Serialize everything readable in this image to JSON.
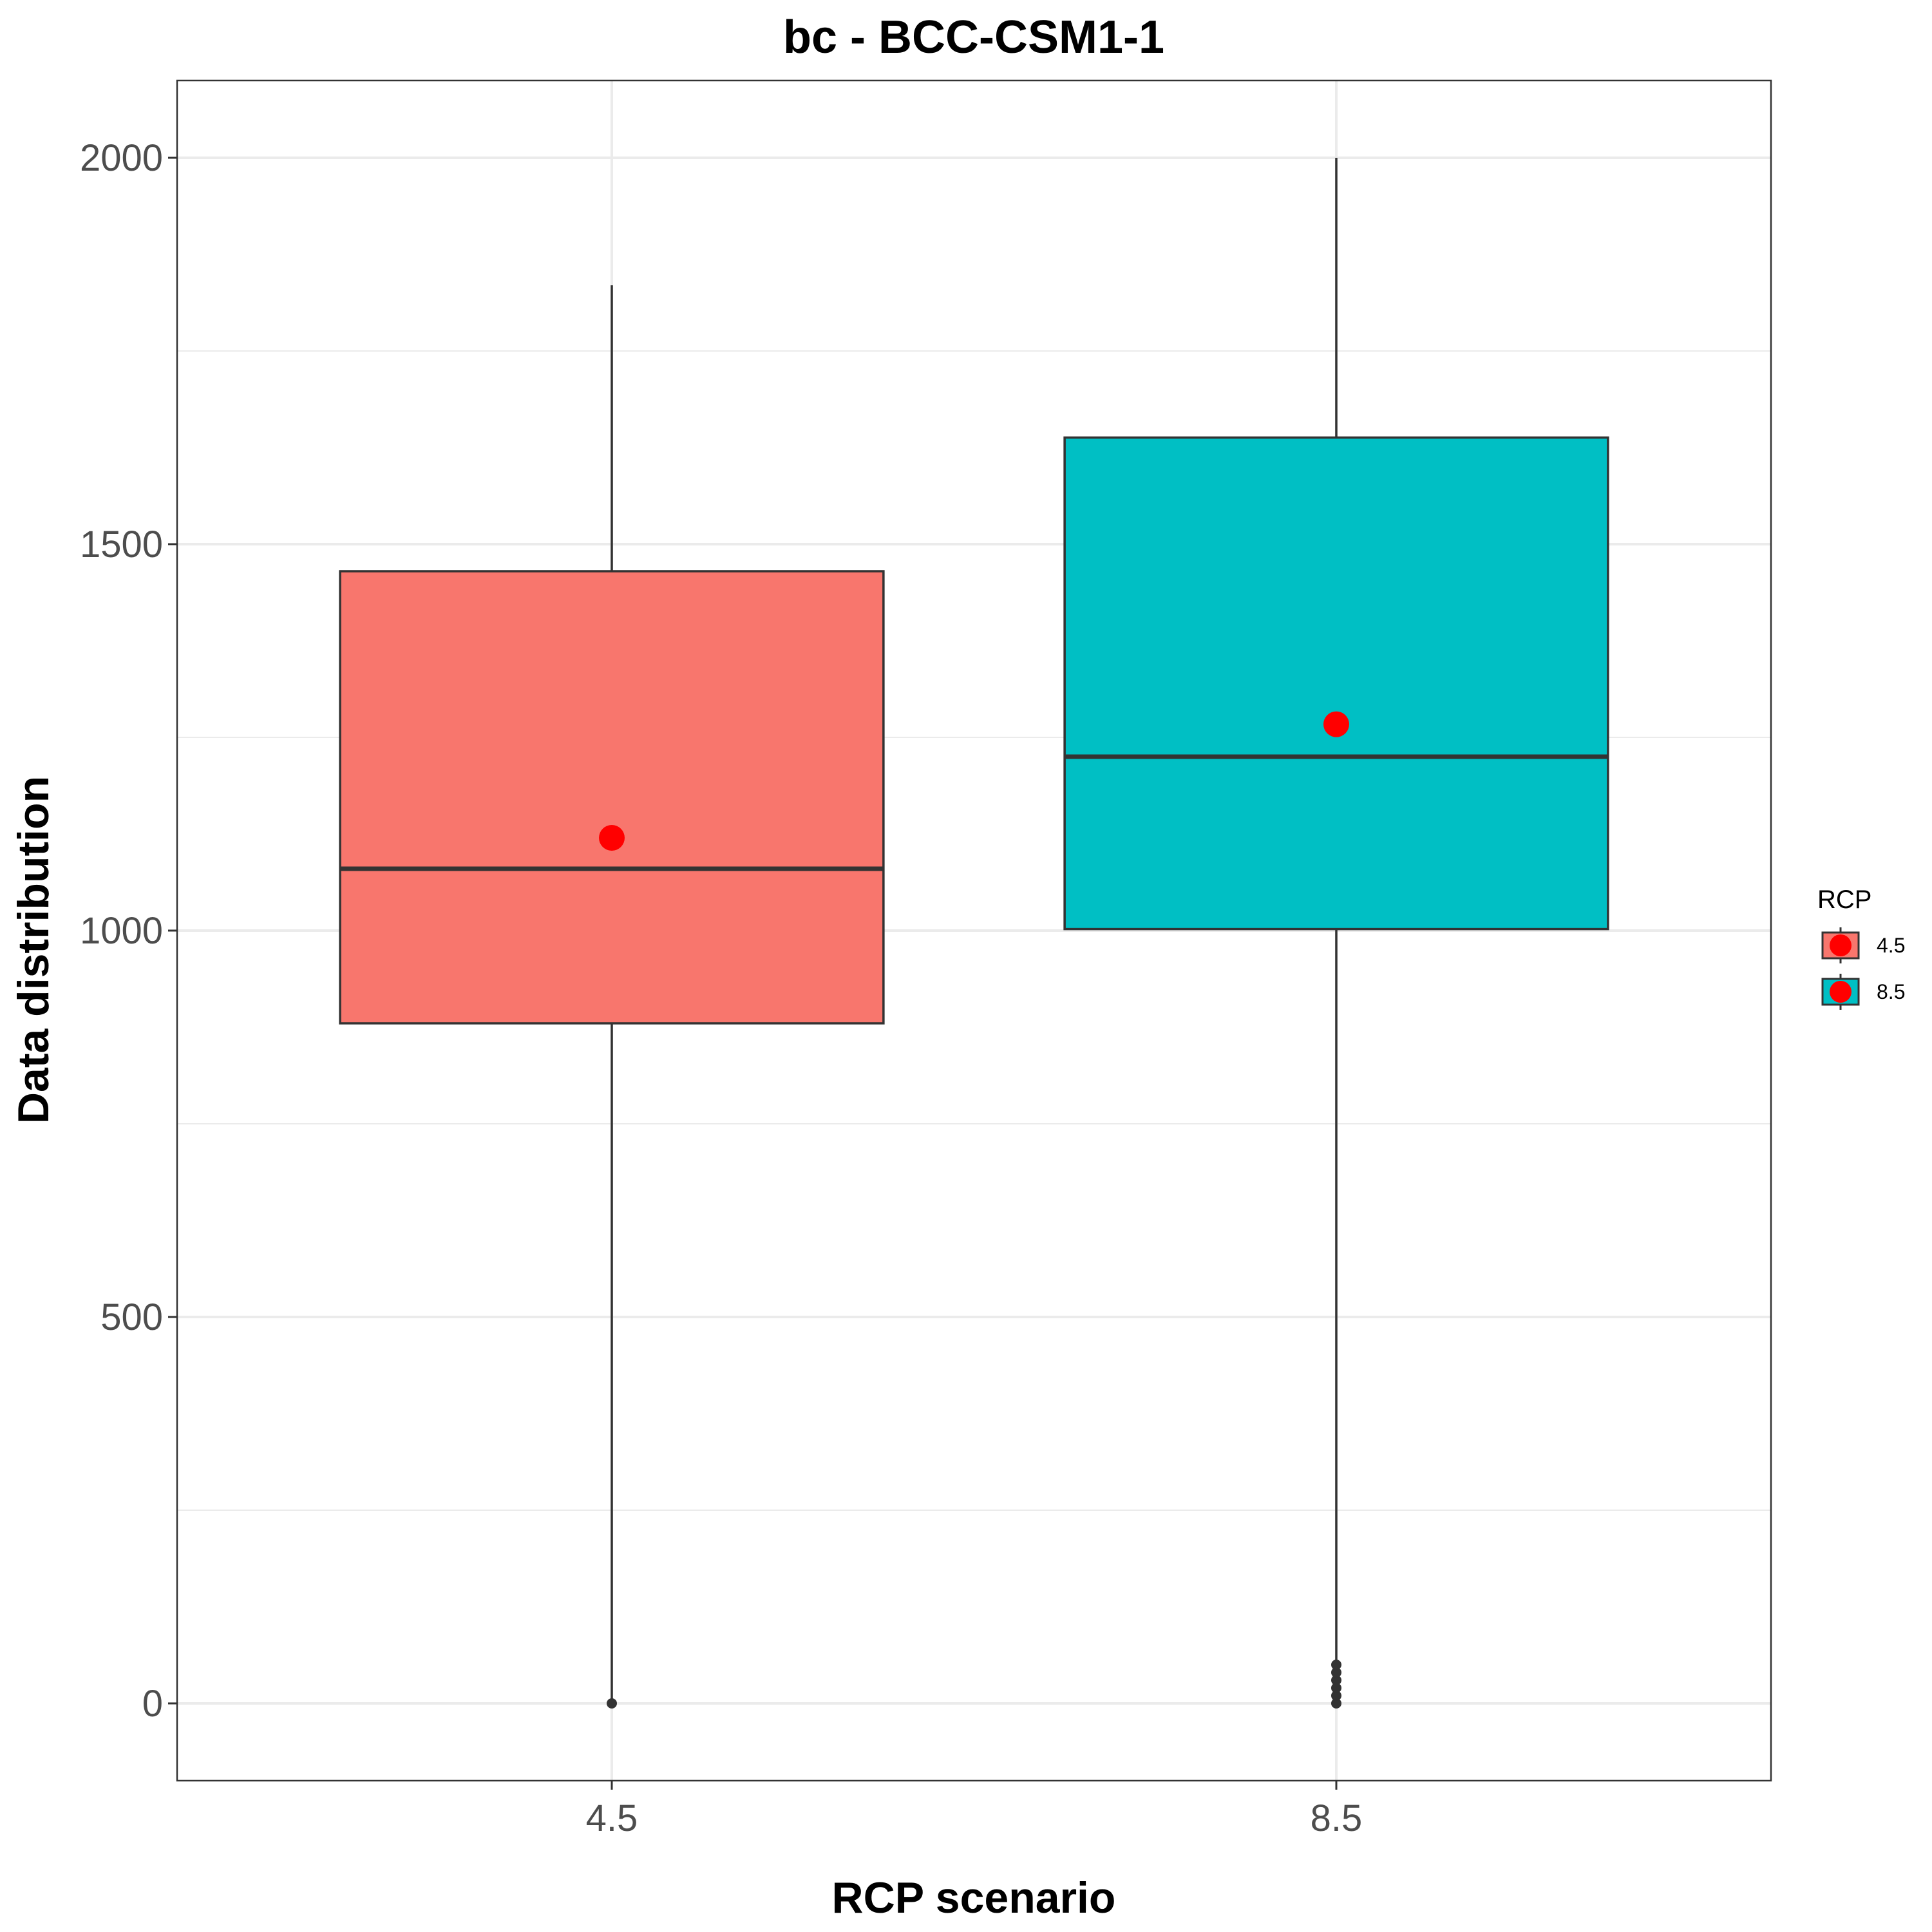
{
  "chart_data": {
    "type": "boxplot",
    "title": "bc - BCC-CSM1-1",
    "xlabel": "RCP scenario",
    "ylabel": "Data distribution",
    "ylim": [
      -100,
      2100
    ],
    "yticks": [
      0,
      500,
      1000,
      1500,
      2000
    ],
    "y_minor_ticks": [
      250,
      750,
      1250,
      1750
    ],
    "grid": true,
    "legend": {
      "title": "RCP",
      "placement": "right",
      "entries": [
        "4.5",
        "8.5"
      ]
    },
    "categories": [
      "4.5",
      "8.5"
    ],
    "boxes": [
      {
        "category": "4.5",
        "color": "#F8766D",
        "whisker_low": 0,
        "q1": 880,
        "median": 1080,
        "q3": 1465,
        "whisker_high": 1835,
        "mean": 1120,
        "outliers": [
          0
        ]
      },
      {
        "category": "8.5",
        "color": "#00BFC4",
        "whisker_low": 0,
        "q1": 1002,
        "median": 1225,
        "q3": 1638,
        "whisker_high": 2000,
        "mean": 1267,
        "outliers": [
          0,
          10,
          20,
          30,
          40,
          50
        ]
      }
    ],
    "mean_marker_color": "#FF0000"
  }
}
